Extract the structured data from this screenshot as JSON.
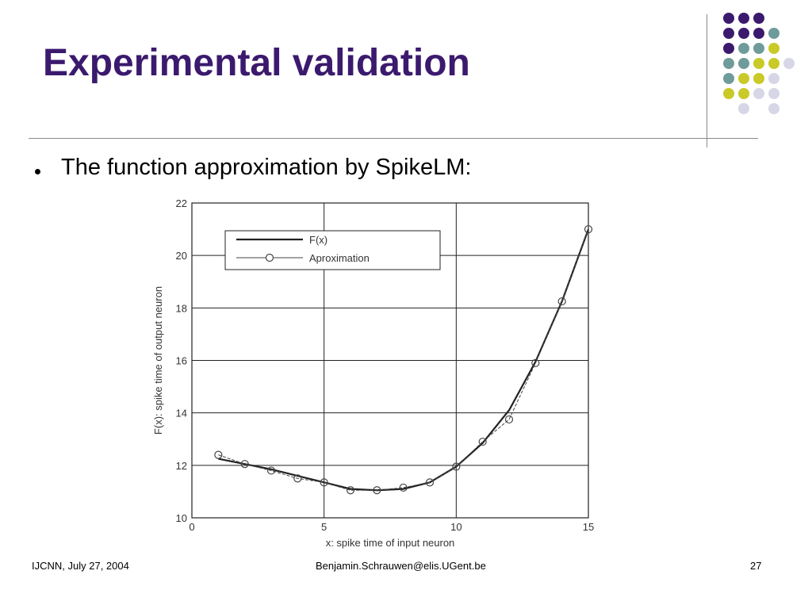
{
  "slide": {
    "title": "Experimental validation",
    "bullet": "The function approximation by SpikeLM:"
  },
  "footer": {
    "left": "IJCNN, July 27, 2004",
    "center": "Benjamin.Schrauwen@elis.UGent.be",
    "page": "27"
  },
  "theme": {
    "title_color": "#3b1a6e",
    "dot_colors": [
      "#3b1a6e",
      "#6f9c9a",
      "#c9c928",
      "#d6d6e6"
    ]
  },
  "chart_data": {
    "type": "line",
    "xlabel": "x: spike time of input neuron",
    "ylabel": "F(x): spike time of output neuron",
    "xlim": [
      0,
      15
    ],
    "ylim": [
      10,
      22
    ],
    "xticks": [
      0,
      5,
      10,
      15
    ],
    "yticks": [
      10,
      12,
      14,
      16,
      18,
      20,
      22
    ],
    "grid": true,
    "legend_position": "top-left",
    "series": [
      {
        "name": "F(x)",
        "style": "solid-thick",
        "x": [
          1,
          2,
          3,
          4,
          5,
          6,
          7,
          8,
          9,
          10,
          11,
          12,
          13,
          14,
          15
        ],
        "y": [
          12.25,
          12.05,
          11.85,
          11.6,
          11.35,
          11.1,
          11.05,
          11.1,
          11.35,
          11.95,
          12.85,
          14.1,
          15.95,
          18.25,
          21.0
        ]
      },
      {
        "name": "Aproximation",
        "style": "dashed-circle",
        "x": [
          1,
          2,
          3,
          4,
          5,
          6,
          7,
          8,
          9,
          10,
          11,
          12,
          13,
          14,
          15
        ],
        "y": [
          12.4,
          12.05,
          11.8,
          11.5,
          11.35,
          11.05,
          11.05,
          11.15,
          11.35,
          11.95,
          12.9,
          13.75,
          15.9,
          18.25,
          21.0
        ]
      }
    ]
  }
}
